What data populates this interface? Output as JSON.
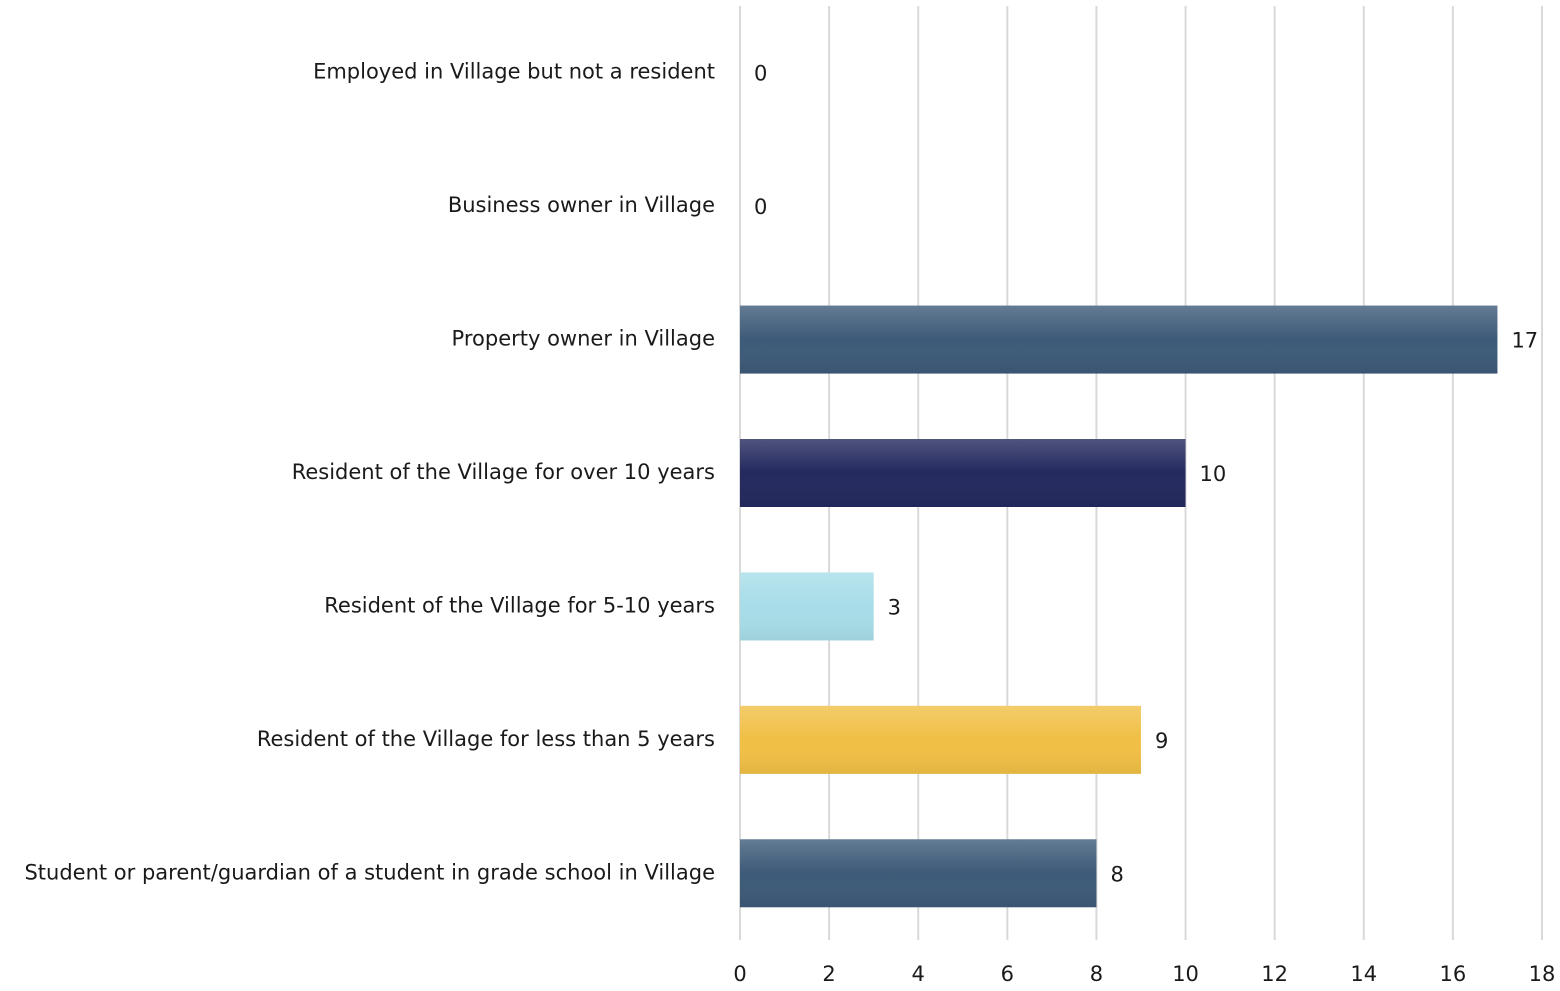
{
  "chart_data": {
    "type": "bar",
    "orientation": "horizontal",
    "categories": [
      "Employed in Village but not a resident",
      "Business owner in Village",
      "Property owner in Village",
      "Resident of the Village for over 10 years",
      "Resident of the Village for 5-10 years",
      "Resident of the Village for less than 5 years",
      "Student or parent/guardian of a student in grade school in Village"
    ],
    "values": [
      0,
      0,
      17,
      10,
      3,
      9,
      8
    ],
    "colors": [
      "#3d5a78",
      "#3d5a78",
      "#3d5a78",
      "#24295e",
      "#a7dde8",
      "#f0bf45",
      "#3d5a78"
    ],
    "xlim": [
      0,
      18
    ],
    "xticks": [
      0,
      2,
      4,
      6,
      8,
      10,
      12,
      14,
      16,
      18
    ],
    "grid": true
  }
}
